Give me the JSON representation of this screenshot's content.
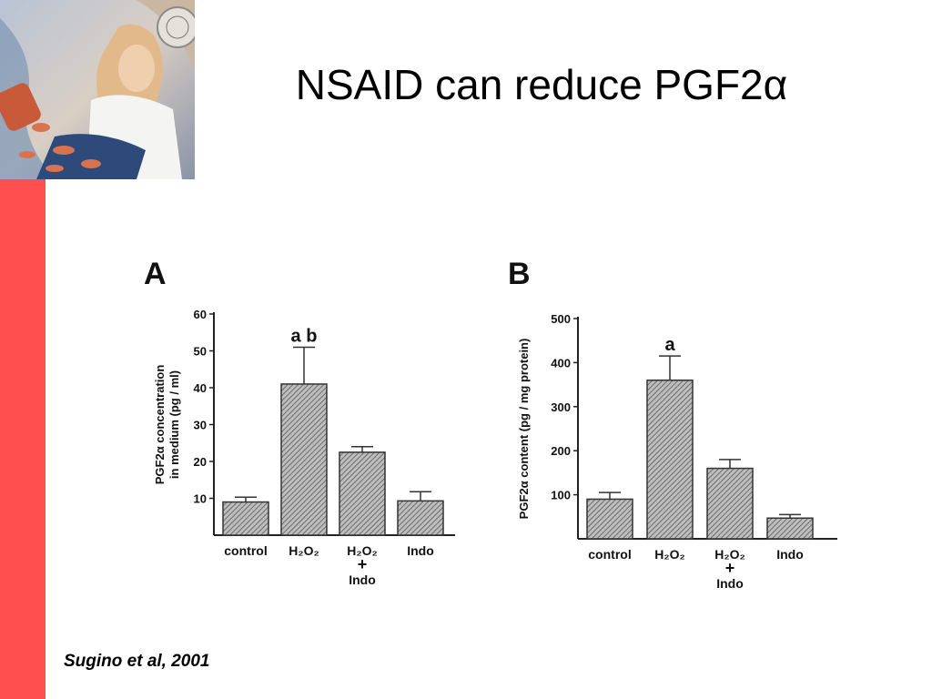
{
  "slide": {
    "title": "NSAID can reduce PGF2α",
    "citation": "Sugino et al, 2001"
  },
  "colors": {
    "accent_bar": "#ff4f4f",
    "bar_fill": "#9a9a9a"
  },
  "icons": {
    "photo": "woman-with-pills-illustration"
  },
  "chart_data": [
    {
      "type": "bar",
      "panel_label": "A",
      "categories": [
        "control",
        "H₂O₂",
        "H₂O₂\n+\nIndo",
        "Indo"
      ],
      "values": [
        9,
        41,
        22.5,
        9.3
      ],
      "errors": [
        1.3,
        10,
        1.5,
        2.5
      ],
      "annotations": [
        "",
        "a  b",
        "",
        ""
      ],
      "ylabel": "PGF2α concentration\nin medium (pg / ml)",
      "yticks": [
        10,
        20,
        30,
        40,
        50,
        60
      ],
      "ylim": [
        0,
        60
      ],
      "grid": false
    },
    {
      "type": "bar",
      "panel_label": "B",
      "categories": [
        "control",
        "H₂O₂",
        "H₂O₂\n+\nIndo",
        "Indo"
      ],
      "values": [
        90,
        360,
        160,
        47
      ],
      "errors": [
        15,
        55,
        20,
        8
      ],
      "annotations": [
        "",
        "a",
        "",
        ""
      ],
      "ylabel": "PGF2α content (pg / mg protein)",
      "yticks": [
        100,
        200,
        300,
        400,
        500
      ],
      "ylim": [
        0,
        500
      ],
      "grid": false
    }
  ]
}
